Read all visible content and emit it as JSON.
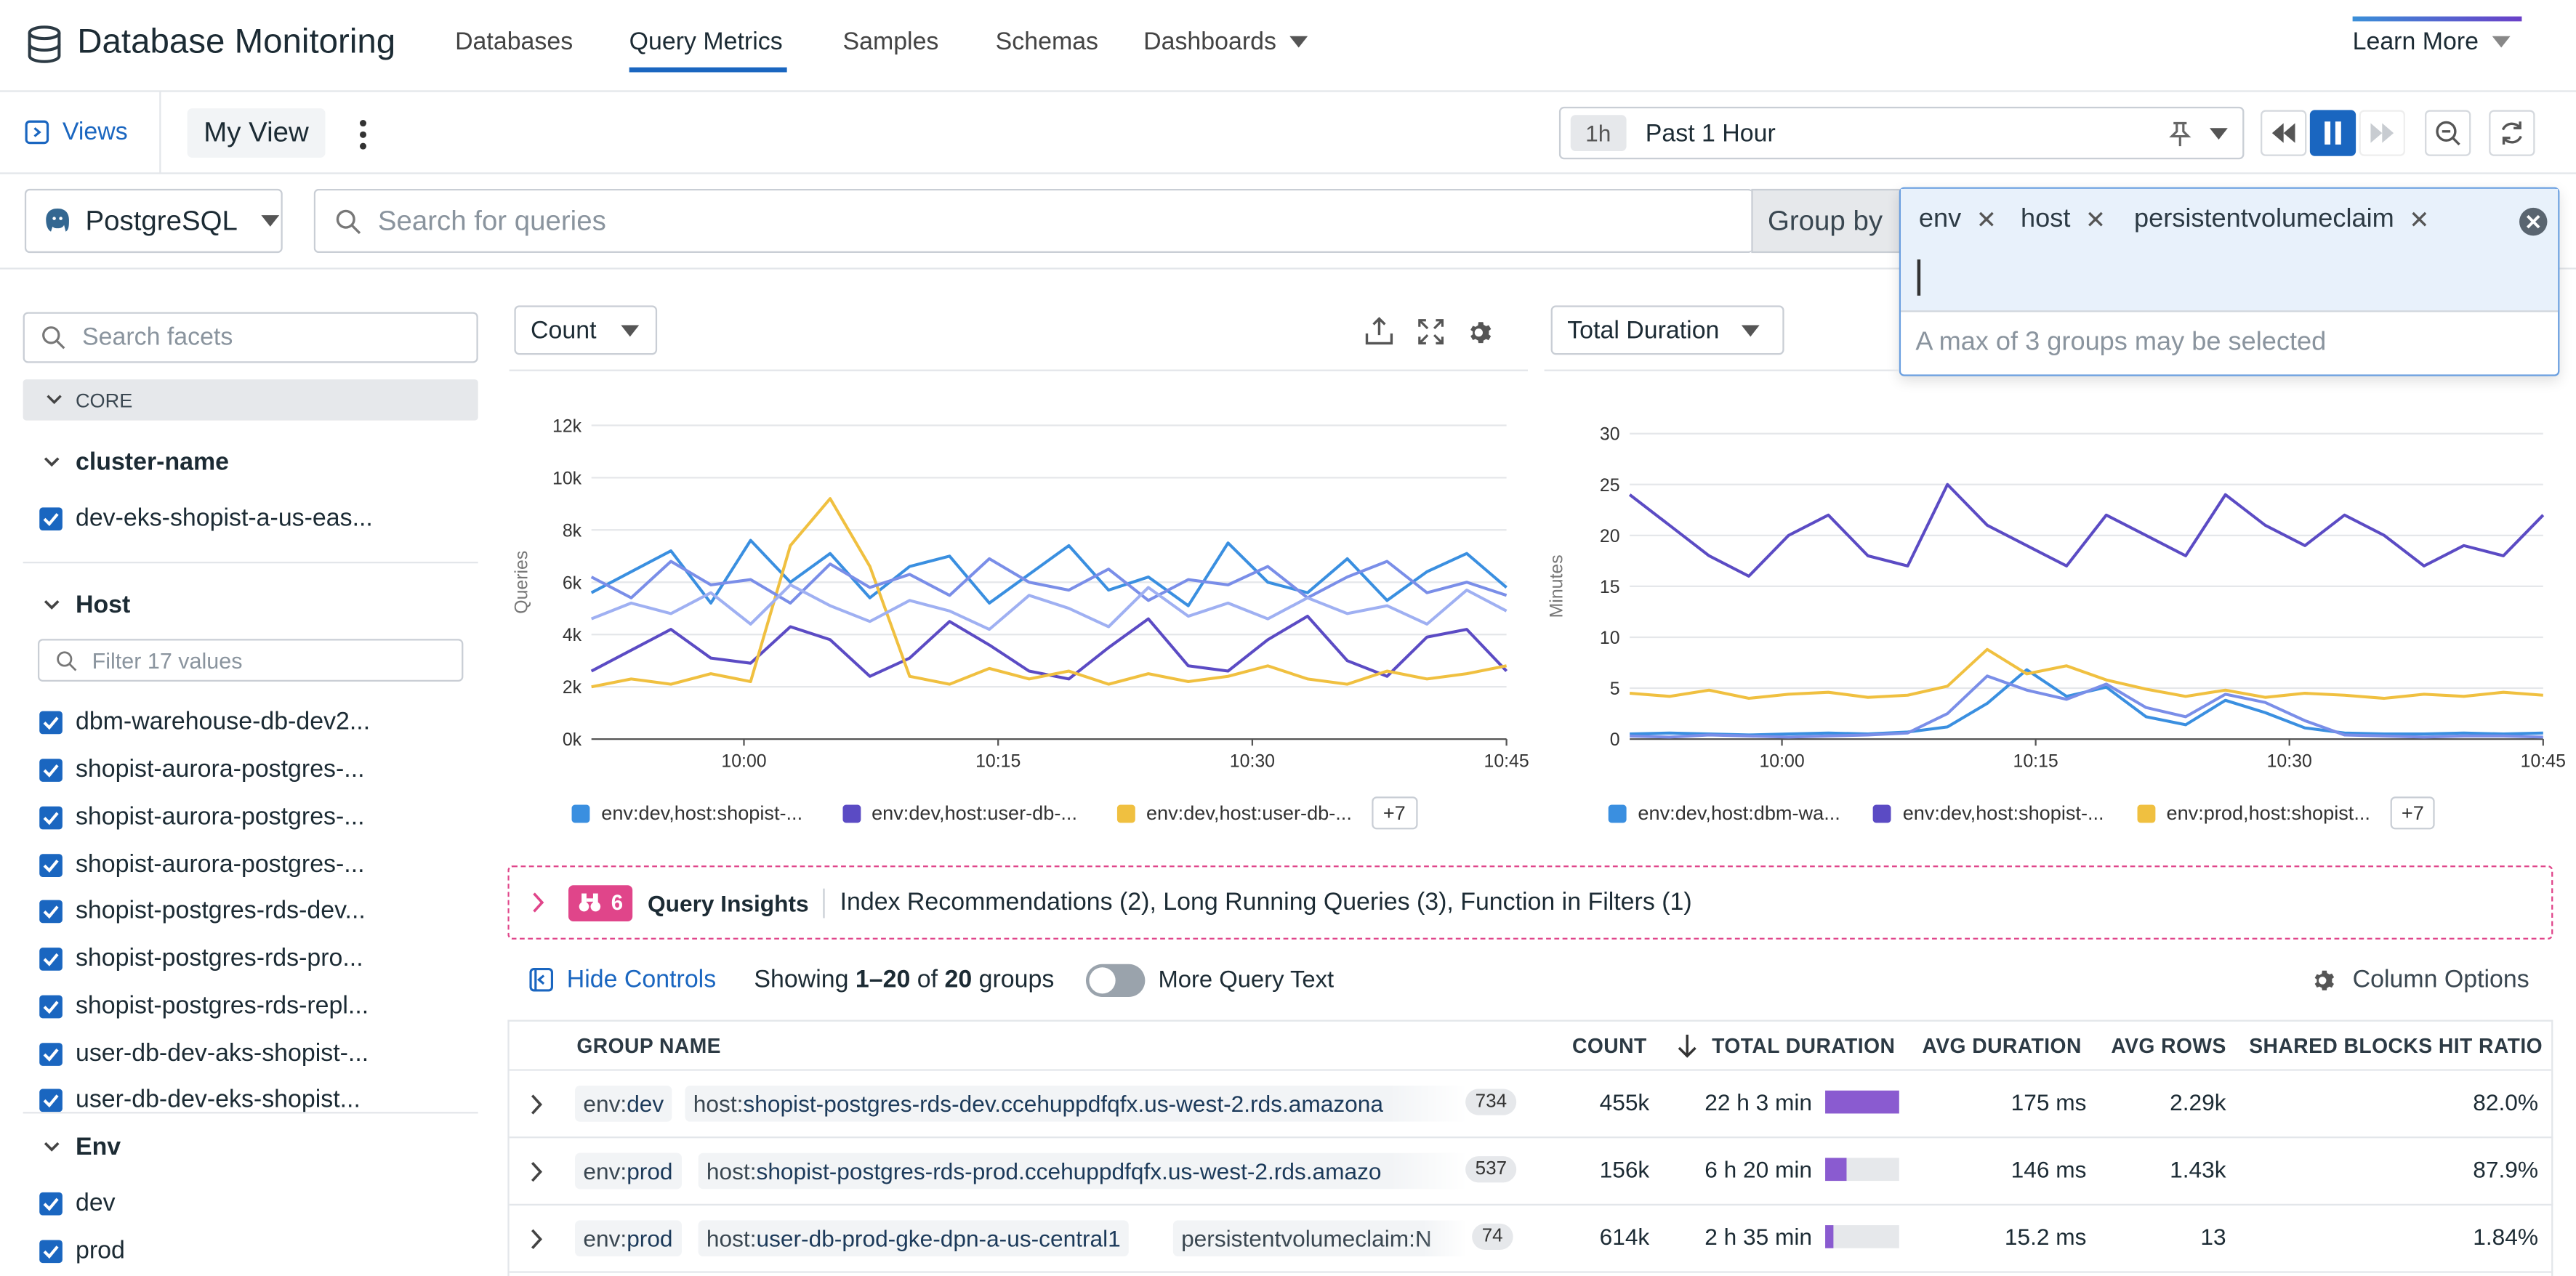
{
  "header": {
    "app_title": "Database Monitoring",
    "nav": [
      "Databases",
      "Query Metrics",
      "Samples",
      "Schemas",
      "Dashboards"
    ],
    "learn_more": "Learn More"
  },
  "toolbar": {
    "views_label": "Views",
    "view_name": "My View",
    "time_badge": "1h",
    "time_label": "Past 1 Hour"
  },
  "filters": {
    "db_type": "PostgreSQL",
    "search_placeholder": "Search for queries",
    "group_by_label": "Group by",
    "group_by_chips": [
      "env",
      "host",
      "persistentvolumeclaim"
    ],
    "group_by_hint": "A max of 3 groups may be selected"
  },
  "sidebar": {
    "search_placeholder": "Search facets",
    "core_label": "CORE",
    "cluster_title": "cluster-name",
    "cluster_items": [
      "dev-eks-shopist-a-us-eas..."
    ],
    "host_title": "Host",
    "host_filter_placeholder": "Filter 17 values",
    "host_items": [
      "dbm-warehouse-db-dev2...",
      "shopist-aurora-postgres-...",
      "shopist-aurora-postgres-...",
      "shopist-aurora-postgres-...",
      "shopist-postgres-rds-dev...",
      "shopist-postgres-rds-pro...",
      "shopist-postgres-rds-repl...",
      "user-db-dev-aks-shopist-...",
      "user-db-dev-eks-shopist..."
    ],
    "env_title": "Env",
    "env_items": [
      "dev",
      "prod"
    ]
  },
  "left_chart": {
    "metric_select": "Count",
    "legend": [
      "env:dev,host:shopist-...",
      "env:dev,host:user-db-...",
      "env:dev,host:user-db-..."
    ],
    "legend_more": "+7"
  },
  "right_chart": {
    "metric_select": "Total Duration",
    "legend": [
      "env:dev,host:dbm-wa...",
      "env:dev,host:shopist-...",
      "env:prod,host:shopist..."
    ],
    "legend_more": "+7"
  },
  "chart_data": [
    {
      "type": "line",
      "ylabel": "Queries",
      "yticks": [
        "0k",
        "2k",
        "4k",
        "6k",
        "8k",
        "10k",
        "12k"
      ],
      "ylim": [
        0,
        12000
      ],
      "xticks": [
        "10:00",
        "10:15",
        "10:30",
        "10:45"
      ],
      "grid": true,
      "legend_position": "bottom",
      "series": [
        {
          "name": "env:dev,host:shopist-...",
          "color": "#3a8fe0",
          "values": [
            5600,
            6400,
            7200,
            5200,
            7600,
            6000,
            7100,
            5400,
            6600,
            7000,
            5200,
            6300,
            7400,
            5700,
            6200,
            5100,
            7500,
            6000,
            5600,
            6900,
            5300,
            6400,
            7100,
            5800
          ]
        },
        {
          "name": "env:dev,host:user-db-...",
          "color": "#5b4bc4",
          "values": [
            2600,
            3400,
            4200,
            3100,
            2900,
            4300,
            3800,
            2400,
            3100,
            4500,
            3600,
            2600,
            2300,
            3500,
            4600,
            2800,
            2600,
            3800,
            4700,
            3000,
            2400,
            3900,
            4200,
            2600
          ]
        },
        {
          "name": "env:dev,host:user-db-...",
          "color": "#f0c040",
          "values": [
            2000,
            2300,
            2100,
            2500,
            2200,
            7400,
            9200,
            6600,
            2400,
            2100,
            2700,
            2300,
            2600,
            2100,
            2500,
            2200,
            2400,
            2800,
            2300,
            2100,
            2600,
            2300,
            2500,
            2800
          ]
        },
        {
          "name": "",
          "color": "#7a8ee8",
          "values": [
            6200,
            5400,
            6800,
            5900,
            6100,
            5200,
            6700,
            5800,
            6300,
            5500,
            6900,
            6000,
            5700,
            6500,
            5300,
            6100,
            5900,
            6600,
            5400,
            6200,
            6800,
            5600,
            6000,
            5500
          ]
        },
        {
          "name": "",
          "color": "#9fb0f2",
          "values": [
            4600,
            5200,
            4800,
            5600,
            4400,
            5900,
            5100,
            4500,
            5300,
            4900,
            4200,
            5500,
            5000,
            4300,
            5800,
            4700,
            5200,
            4600,
            5400,
            4800,
            5100,
            4400,
            5700,
            4900
          ]
        }
      ]
    },
    {
      "type": "line",
      "ylabel": "Minutes",
      "yticks": [
        "0",
        "5",
        "10",
        "15",
        "20",
        "25",
        "30"
      ],
      "ylim": [
        0,
        30
      ],
      "xticks": [
        "10:00",
        "10:15",
        "10:30",
        "10:45"
      ],
      "grid": true,
      "legend_position": "bottom",
      "series": [
        {
          "name": "env:dev,host:dbm-wa...",
          "color": "#3a8fe0",
          "values": [
            0.5,
            0.6,
            0.5,
            0.4,
            0.5,
            0.6,
            0.5,
            0.7,
            1.2,
            3.5,
            6.8,
            4.2,
            5.1,
            2.2,
            1.4,
            3.8,
            2.6,
            1.1,
            0.6,
            0.5,
            0.5,
            0.6,
            0.5,
            0.6
          ]
        },
        {
          "name": "env:dev,host:shopist-...",
          "color": "#5b4bc4",
          "values": [
            24,
            21,
            18,
            16,
            20,
            22,
            18,
            17,
            25,
            21,
            19,
            17,
            22,
            20,
            18,
            24,
            21,
            19,
            22,
            20,
            17,
            19,
            18,
            22
          ]
        },
        {
          "name": "env:prod,host:shopist...",
          "color": "#f0c040",
          "values": [
            4.5,
            4.2,
            4.8,
            4.0,
            4.4,
            4.6,
            4.1,
            4.3,
            5.2,
            8.8,
            6.4,
            7.2,
            5.8,
            4.9,
            4.2,
            4.8,
            4.1,
            4.5,
            4.3,
            4.0,
            4.4,
            4.2,
            4.6,
            4.3
          ]
        },
        {
          "name": "",
          "color": "#7a8ee8",
          "values": [
            0.3,
            0.2,
            0.4,
            0.3,
            0.2,
            0.3,
            0.4,
            0.6,
            2.5,
            6.2,
            4.8,
            3.9,
            5.4,
            3.1,
            2.2,
            4.4,
            3.6,
            1.8,
            0.4,
            0.3,
            0.2,
            0.3,
            0.3,
            0.2
          ]
        }
      ]
    }
  ],
  "insights": {
    "count": "6",
    "label": "Query Insights",
    "text": "Index Recommendations (2), Long Running Queries (3), Function in Filters (1)"
  },
  "controls": {
    "hide_controls": "Hide Controls",
    "showing_pre": "Showing ",
    "showing_range": "1–20",
    "showing_of": " of ",
    "showing_total": "20",
    "showing_post": " groups",
    "more_query_text": "More Query Text",
    "column_options": "Column Options"
  },
  "table": {
    "headers": [
      "GROUP NAME",
      "COUNT",
      "TOTAL DURATION",
      "AVG DURATION",
      "AVG ROWS",
      "SHARED BLOCKS HIT RATIO"
    ],
    "rows": [
      {
        "env_key": "env:",
        "env_val": "dev",
        "host_key": "host:",
        "host_val": "shopist-postgres-rds-dev.ccehuppdfqfx.us-west-2.rds.amazona",
        "pvc": "",
        "n": "734",
        "count": "455k",
        "total_duration": "22 h 3 min",
        "duration_fraction": 1.0,
        "avg_duration": "175 ms",
        "avg_rows": "2.29k",
        "hit_ratio": "82.0%"
      },
      {
        "env_key": "env:",
        "env_val": "prod",
        "host_key": "host:",
        "host_val": "shopist-postgres-rds-prod.ccehuppdfqfx.us-west-2.rds.amazo",
        "pvc": "",
        "n": "537",
        "count": "156k",
        "total_duration": "6 h 20 min",
        "duration_fraction": 0.29,
        "avg_duration": "146 ms",
        "avg_rows": "1.43k",
        "hit_ratio": "87.9%"
      },
      {
        "env_key": "env:",
        "env_val": "prod",
        "host_key": "host:",
        "host_val": "user-db-prod-gke-dpn-a-us-central1",
        "pvc": "persistentvolumeclaim:N",
        "n": "74",
        "count": "614k",
        "total_duration": "2 h 35 min",
        "duration_fraction": 0.12,
        "avg_duration": "15.2 ms",
        "avg_rows": "13",
        "hit_ratio": "1.84%"
      }
    ]
  }
}
